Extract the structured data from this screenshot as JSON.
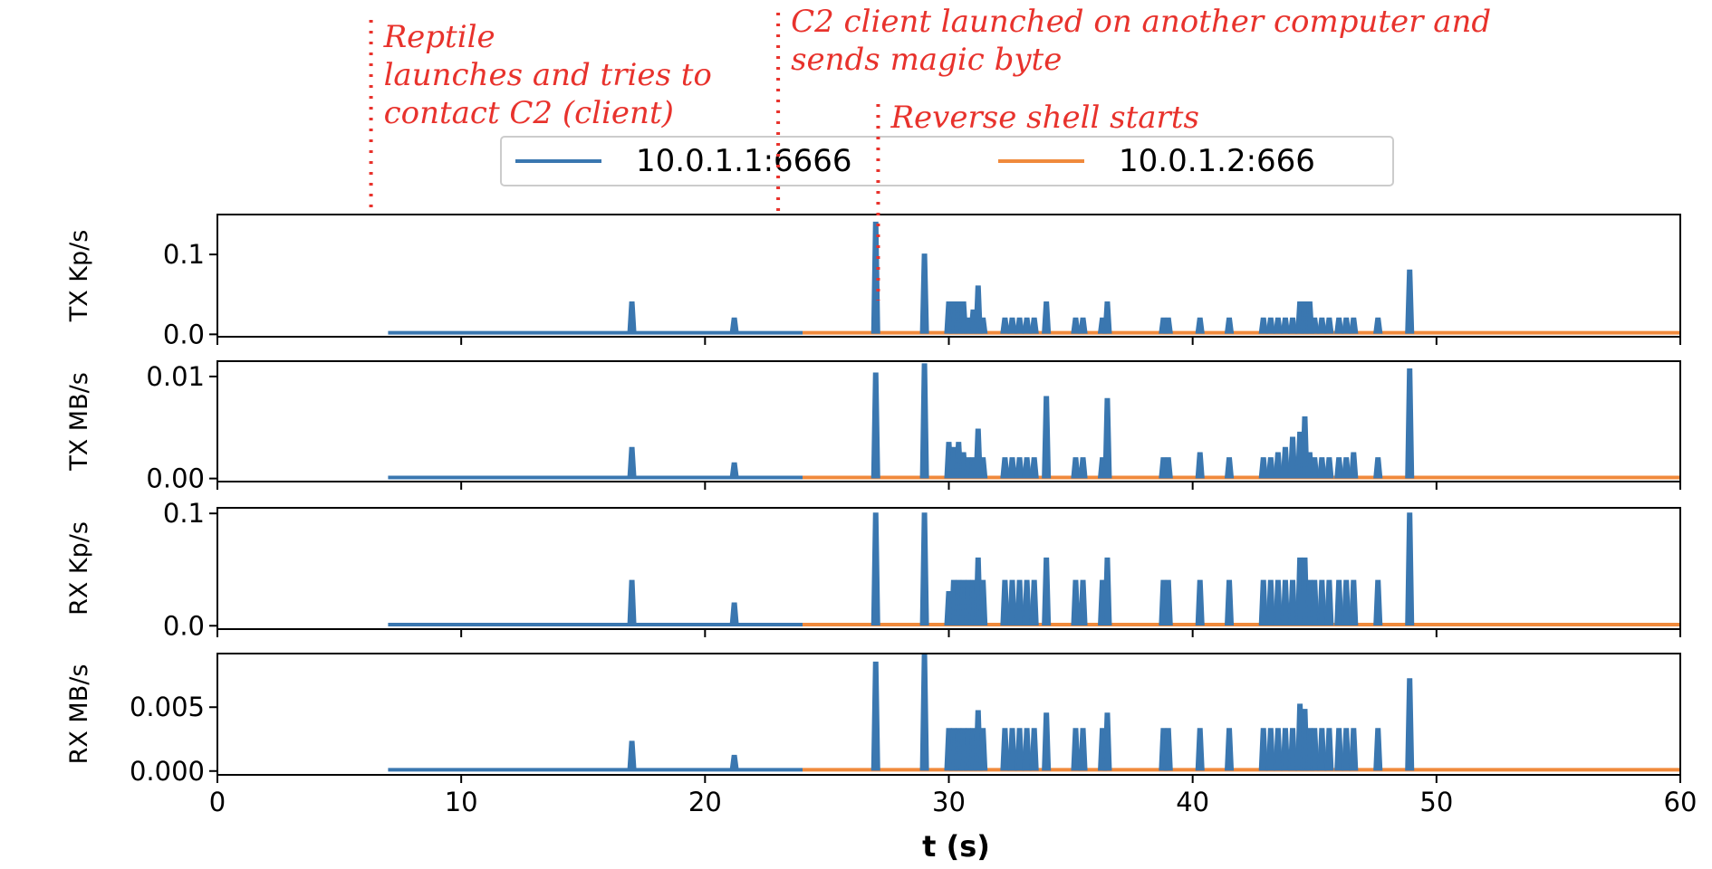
{
  "chart_data": {
    "type": "line",
    "xlabel": "t (s)",
    "xlim": [
      0,
      60
    ],
    "xticks": [
      0,
      10,
      20,
      30,
      40,
      50,
      60
    ],
    "colors": {
      "10.0.1.1:6666": "#3a77b0",
      "10.0.1.2:666": "#f08a3c",
      "annotation": "#e8322c"
    },
    "legend": {
      "placement": "top-center",
      "entries": [
        "10.0.1.1:6666",
        "10.0.1.2:666"
      ]
    },
    "annotations": [
      {
        "x": 6.3,
        "text_lines": [
          "Reptile",
          "launches and tries to",
          "contact C2 (client)"
        ]
      },
      {
        "x": 23.0,
        "text_lines": [
          "C2 client launched on another computer and",
          "sends magic byte"
        ]
      },
      {
        "x": 27.1,
        "text_lines": [
          "Reverse shell starts"
        ]
      }
    ],
    "panels": [
      {
        "ylabel": "TX Kp/s",
        "ylim": [
          -0.003,
          0.15
        ],
        "yticks": [
          0.0,
          0.1
        ],
        "ytick_labels": [
          "0.0",
          "0.1"
        ],
        "series": [
          {
            "name": "10.0.1.1:6666",
            "x_range": [
              7,
              24
            ],
            "baseline": 0.002,
            "spikes": [
              [
                17.0,
                0.04
              ],
              [
                21.2,
                0.02
              ]
            ]
          },
          {
            "name": "10.0.1.2:666",
            "x_range": [
              24,
              60
            ],
            "baseline": 0.002,
            "spikes": [
              [
                27.0,
                0.14
              ],
              [
                29.0,
                0.1
              ],
              [
                30.0,
                0.04
              ],
              [
                30.2,
                0.04
              ],
              [
                30.4,
                0.04
              ],
              [
                30.6,
                0.04
              ],
              [
                30.8,
                0.02
              ],
              [
                31.0,
                0.03
              ],
              [
                31.2,
                0.06
              ],
              [
                31.4,
                0.02
              ],
              [
                32.3,
                0.02
              ],
              [
                32.6,
                0.02
              ],
              [
                32.9,
                0.02
              ],
              [
                33.2,
                0.02
              ],
              [
                33.5,
                0.02
              ],
              [
                34.0,
                0.04
              ],
              [
                35.2,
                0.02
              ],
              [
                35.5,
                0.02
              ],
              [
                36.3,
                0.02
              ],
              [
                36.5,
                0.04
              ],
              [
                38.8,
                0.02
              ],
              [
                39.0,
                0.02
              ],
              [
                40.3,
                0.02
              ],
              [
                41.5,
                0.02
              ],
              [
                42.9,
                0.02
              ],
              [
                43.2,
                0.02
              ],
              [
                43.5,
                0.02
              ],
              [
                43.8,
                0.02
              ],
              [
                44.1,
                0.02
              ],
              [
                44.4,
                0.04
              ],
              [
                44.6,
                0.04
              ],
              [
                44.8,
                0.04
              ],
              [
                45.0,
                0.02
              ],
              [
                45.3,
                0.02
              ],
              [
                45.6,
                0.02
              ],
              [
                46.0,
                0.02
              ],
              [
                46.3,
                0.02
              ],
              [
                46.6,
                0.02
              ],
              [
                47.6,
                0.02
              ],
              [
                48.9,
                0.08
              ]
            ]
          }
        ]
      },
      {
        "ylabel": "TX MB/s",
        "ylim": [
          -0.0003,
          0.0115
        ],
        "yticks": [
          0.0,
          0.01
        ],
        "ytick_labels": [
          "0.00",
          "0.01"
        ],
        "series": [
          {
            "name": "10.0.1.1:6666",
            "x_range": [
              7,
              24
            ],
            "baseline": 0.0001,
            "spikes": [
              [
                17.0,
                0.003
              ],
              [
                21.2,
                0.0015
              ]
            ]
          },
          {
            "name": "10.0.1.2:666",
            "x_range": [
              24,
              60
            ],
            "baseline": 0.0001,
            "spikes": [
              [
                27.0,
                0.0103
              ],
              [
                29.0,
                0.0112
              ],
              [
                30.0,
                0.0035
              ],
              [
                30.2,
                0.003
              ],
              [
                30.4,
                0.0035
              ],
              [
                30.6,
                0.0025
              ],
              [
                30.8,
                0.002
              ],
              [
                31.0,
                0.002
              ],
              [
                31.2,
                0.0048
              ],
              [
                31.4,
                0.002
              ],
              [
                32.3,
                0.002
              ],
              [
                32.6,
                0.002
              ],
              [
                32.9,
                0.002
              ],
              [
                33.2,
                0.002
              ],
              [
                33.5,
                0.002
              ],
              [
                34.0,
                0.008
              ],
              [
                35.2,
                0.002
              ],
              [
                35.5,
                0.002
              ],
              [
                36.3,
                0.002
              ],
              [
                36.5,
                0.0078
              ],
              [
                38.8,
                0.002
              ],
              [
                39.0,
                0.002
              ],
              [
                40.3,
                0.0025
              ],
              [
                41.5,
                0.002
              ],
              [
                42.9,
                0.002
              ],
              [
                43.2,
                0.002
              ],
              [
                43.5,
                0.0025
              ],
              [
                43.8,
                0.003
              ],
              [
                44.1,
                0.004
              ],
              [
                44.4,
                0.0045
              ],
              [
                44.6,
                0.006
              ],
              [
                44.8,
                0.0025
              ],
              [
                45.0,
                0.002
              ],
              [
                45.3,
                0.002
              ],
              [
                45.6,
                0.002
              ],
              [
                46.0,
                0.002
              ],
              [
                46.3,
                0.002
              ],
              [
                46.6,
                0.0025
              ],
              [
                47.6,
                0.002
              ],
              [
                48.9,
                0.0107
              ]
            ]
          }
        ]
      },
      {
        "ylabel": "RX Kp/s",
        "ylim": [
          -0.003,
          0.105
        ],
        "yticks": [
          0.0,
          0.1
        ],
        "ytick_labels": [
          "0.0",
          "0.1"
        ],
        "series": [
          {
            "name": "10.0.1.1:6666",
            "x_range": [
              7,
              24
            ],
            "baseline": 0.001,
            "spikes": [
              [
                17.0,
                0.04
              ],
              [
                21.2,
                0.02
              ]
            ]
          },
          {
            "name": "10.0.1.2:666",
            "x_range": [
              24,
              60
            ],
            "baseline": 0.001,
            "spikes": [
              [
                27.0,
                0.1
              ],
              [
                29.0,
                0.1
              ],
              [
                30.0,
                0.03
              ],
              [
                30.2,
                0.04
              ],
              [
                30.4,
                0.04
              ],
              [
                30.6,
                0.04
              ],
              [
                30.8,
                0.04
              ],
              [
                31.0,
                0.04
              ],
              [
                31.2,
                0.06
              ],
              [
                31.4,
                0.04
              ],
              [
                32.3,
                0.04
              ],
              [
                32.6,
                0.04
              ],
              [
                32.9,
                0.04
              ],
              [
                33.2,
                0.04
              ],
              [
                33.5,
                0.04
              ],
              [
                34.0,
                0.06
              ],
              [
                35.2,
                0.04
              ],
              [
                35.5,
                0.04
              ],
              [
                36.3,
                0.04
              ],
              [
                36.5,
                0.06
              ],
              [
                38.8,
                0.04
              ],
              [
                39.0,
                0.04
              ],
              [
                40.3,
                0.04
              ],
              [
                41.5,
                0.04
              ],
              [
                42.9,
                0.04
              ],
              [
                43.2,
                0.04
              ],
              [
                43.5,
                0.04
              ],
              [
                43.8,
                0.04
              ],
              [
                44.1,
                0.04
              ],
              [
                44.4,
                0.06
              ],
              [
                44.6,
                0.06
              ],
              [
                44.8,
                0.04
              ],
              [
                45.0,
                0.04
              ],
              [
                45.3,
                0.04
              ],
              [
                45.6,
                0.04
              ],
              [
                46.0,
                0.04
              ],
              [
                46.3,
                0.04
              ],
              [
                46.6,
                0.04
              ],
              [
                47.6,
                0.04
              ],
              [
                48.9,
                0.1
              ]
            ]
          }
        ]
      },
      {
        "ylabel": "RX MB/s",
        "ylim": [
          -0.0003,
          0.0092
        ],
        "yticks": [
          0.0,
          0.005
        ],
        "ytick_labels": [
          "0.000",
          "0.005"
        ],
        "series": [
          {
            "name": "10.0.1.1:6666",
            "x_range": [
              7,
              24
            ],
            "baseline": 0.0001,
            "spikes": [
              [
                17.0,
                0.0023
              ],
              [
                21.2,
                0.0012
              ]
            ]
          },
          {
            "name": "10.0.1.2:666",
            "x_range": [
              24,
              60
            ],
            "baseline": 0.0001,
            "spikes": [
              [
                27.0,
                0.0085
              ],
              [
                29.0,
                0.0091
              ],
              [
                30.0,
                0.0033
              ],
              [
                30.2,
                0.0033
              ],
              [
                30.4,
                0.0033
              ],
              [
                30.6,
                0.0033
              ],
              [
                30.8,
                0.0033
              ],
              [
                31.0,
                0.0033
              ],
              [
                31.2,
                0.0047
              ],
              [
                31.4,
                0.0033
              ],
              [
                32.3,
                0.0033
              ],
              [
                32.6,
                0.0033
              ],
              [
                32.9,
                0.0033
              ],
              [
                33.2,
                0.0033
              ],
              [
                33.5,
                0.0033
              ],
              [
                34.0,
                0.0045
              ],
              [
                35.2,
                0.0033
              ],
              [
                35.5,
                0.0033
              ],
              [
                36.3,
                0.0033
              ],
              [
                36.5,
                0.0045
              ],
              [
                38.8,
                0.0033
              ],
              [
                39.0,
                0.0033
              ],
              [
                40.3,
                0.0033
              ],
              [
                41.5,
                0.0033
              ],
              [
                42.9,
                0.0033
              ],
              [
                43.2,
                0.0033
              ],
              [
                43.5,
                0.0033
              ],
              [
                43.8,
                0.0033
              ],
              [
                44.1,
                0.0033
              ],
              [
                44.4,
                0.0052
              ],
              [
                44.6,
                0.0048
              ],
              [
                44.8,
                0.0033
              ],
              [
                45.0,
                0.0033
              ],
              [
                45.3,
                0.0033
              ],
              [
                45.6,
                0.0033
              ],
              [
                46.0,
                0.0033
              ],
              [
                46.3,
                0.0033
              ],
              [
                46.6,
                0.0033
              ],
              [
                47.6,
                0.0033
              ],
              [
                48.9,
                0.0072
              ]
            ]
          }
        ]
      }
    ]
  }
}
